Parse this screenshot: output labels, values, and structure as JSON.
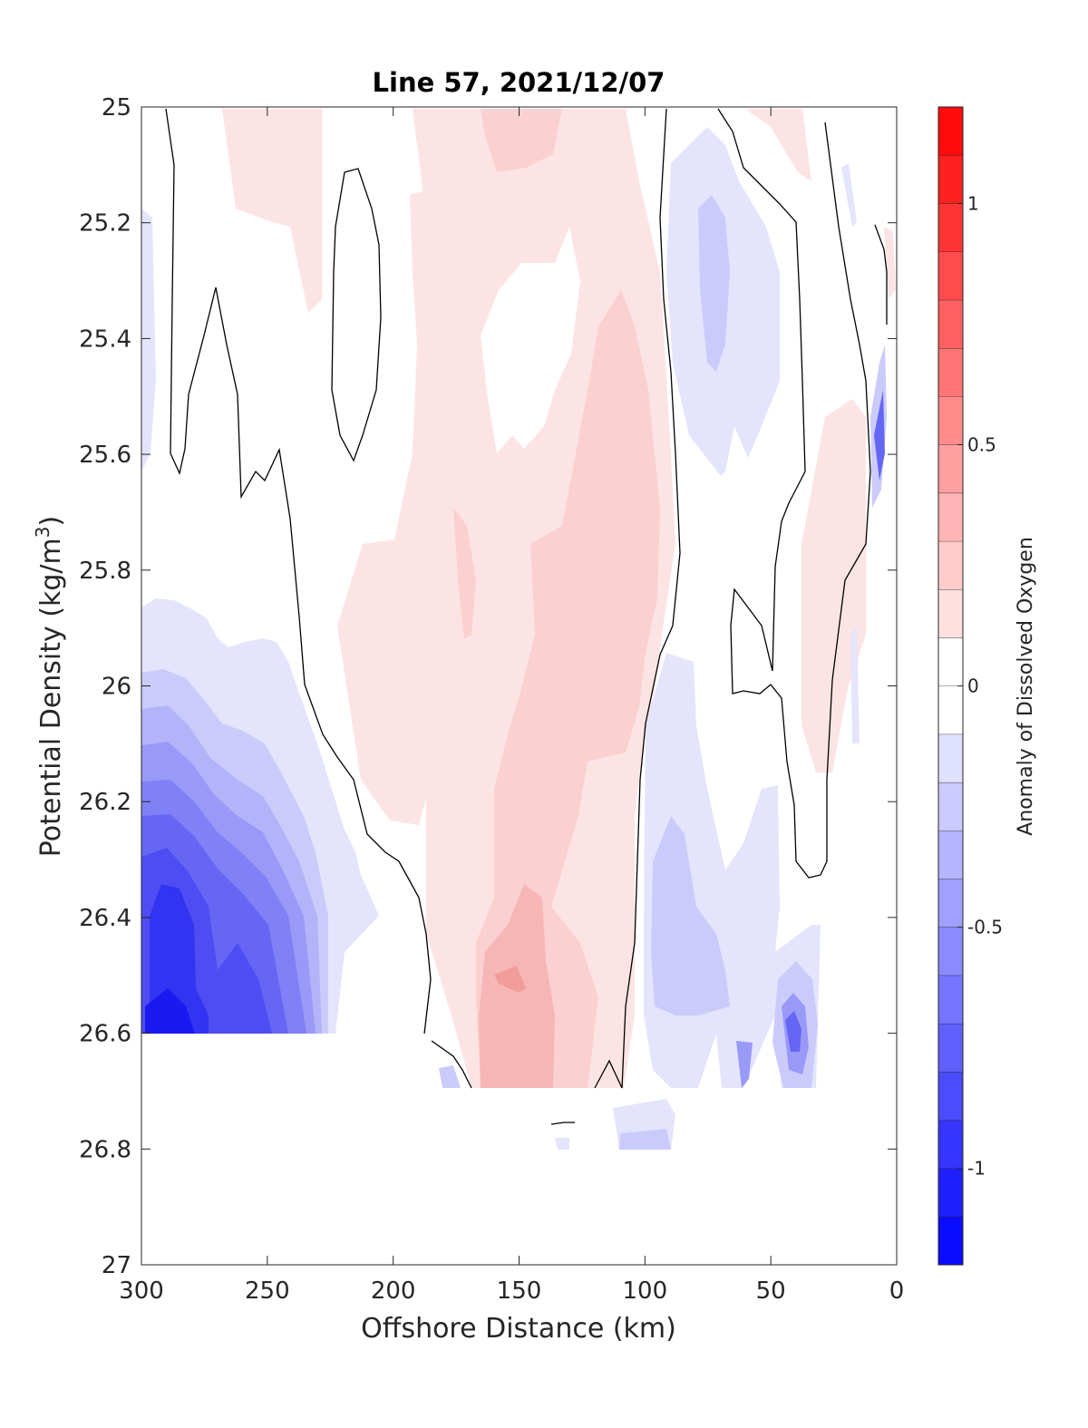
{
  "chart_data": {
    "type": "heatmap",
    "title": "Line 57, 2021/12/07",
    "xlabel": "Offshore Distance (km)",
    "ylabel_main": "Potential Density (kg/m",
    "ylabel_sup": "3",
    "ylabel_close": ")",
    "xlim": [
      300,
      0
    ],
    "ylim": [
      25,
      27
    ],
    "x_reversed": true,
    "y_reversed": true,
    "x_ticks": [
      300,
      250,
      200,
      150,
      100,
      50,
      0
    ],
    "x_tick_labels": [
      "300",
      "250",
      "200",
      "150",
      "100",
      "50",
      "0"
    ],
    "y_ticks": [
      25,
      25.2,
      25.4,
      25.6,
      25.8,
      26,
      26.2,
      26.4,
      26.6,
      26.8,
      27
    ],
    "y_tick_labels": [
      "25",
      "25.2",
      "25.4",
      "25.6",
      "25.8",
      "26",
      "26.2",
      "26.4",
      "26.6",
      "26.8",
      "27"
    ],
    "colorbar": {
      "label": "Anomaly of Dissolved Oxygen",
      "range": [
        -1.2,
        1.2
      ],
      "step": 0.1,
      "ticks": [
        -1,
        -0.5,
        0,
        0.5,
        1
      ],
      "tick_labels": [
        "-1",
        "-0.5",
        "0",
        "0.5",
        "1"
      ],
      "colormap": "blue-white-red",
      "neg_color": "#0000ff",
      "pos_color": "#ff0000",
      "zero_color": "#ffffff"
    },
    "zero_contour_color": "#000000",
    "features": [
      {
        "name": "deep offshore low-oxygen anomaly",
        "x_range": [
          300,
          220
        ],
        "sigma_range": [
          25.9,
          26.6
        ],
        "min_value": -1.0
      },
      {
        "name": "mid-section positive anomaly",
        "x_range": [
          190,
          90
        ],
        "sigma_range": [
          25.0,
          26.7
        ],
        "max_value": 0.4
      },
      {
        "name": "nearshore negative anomaly (upper)",
        "x_range": [
          90,
          45
        ],
        "sigma_range": [
          25.0,
          25.7
        ],
        "min_value": -0.3
      },
      {
        "name": "nearshore negative anomaly (deep)",
        "x_range": [
          100,
          30
        ],
        "sigma_range": [
          26.0,
          26.8
        ],
        "min_value": -0.6
      },
      {
        "name": "shelf positive anomaly",
        "x_range": [
          30,
          15
        ],
        "sigma_range": [
          25.7,
          26.2
        ],
        "max_value": 0.2
      },
      {
        "name": "coastal negative anomaly",
        "x_range": [
          10,
          2
        ],
        "sigma_range": [
          25.5,
          26.1
        ],
        "min_value": -0.6
      }
    ]
  }
}
